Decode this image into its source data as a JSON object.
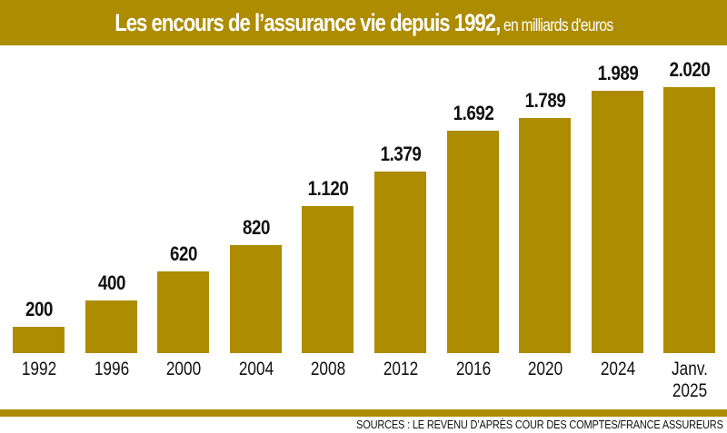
{
  "header": {
    "title": "Les encours de l’assurance vie depuis 1992,",
    "subtitle": " en milliards d'euros"
  },
  "chart_data": {
    "type": "bar",
    "title": "Les encours de l’assurance vie depuis 1992, en milliards d'euros",
    "categories": [
      "1992",
      "1996",
      "2000",
      "2004",
      "2008",
      "2012",
      "2016",
      "2020",
      "2024",
      "Janv. 2025"
    ],
    "values": [
      200,
      400,
      620,
      820,
      1120,
      1379,
      1692,
      1789,
      1989,
      2020
    ],
    "value_labels": [
      "200",
      "400",
      "620",
      "820",
      "1.120",
      "1.379",
      "1.692",
      "1.789",
      "1.989",
      "2.020"
    ],
    "xlabel": "",
    "ylabel": "milliards d'euros",
    "ylim": [
      0,
      2100
    ],
    "grid": false,
    "legend": null,
    "bar_color": "#ad8c00"
  },
  "footer": {
    "source": "SOURCES : LE REVENU D’APRÈS COUR DES COMPTES/FRANCE ASSUREURS"
  }
}
